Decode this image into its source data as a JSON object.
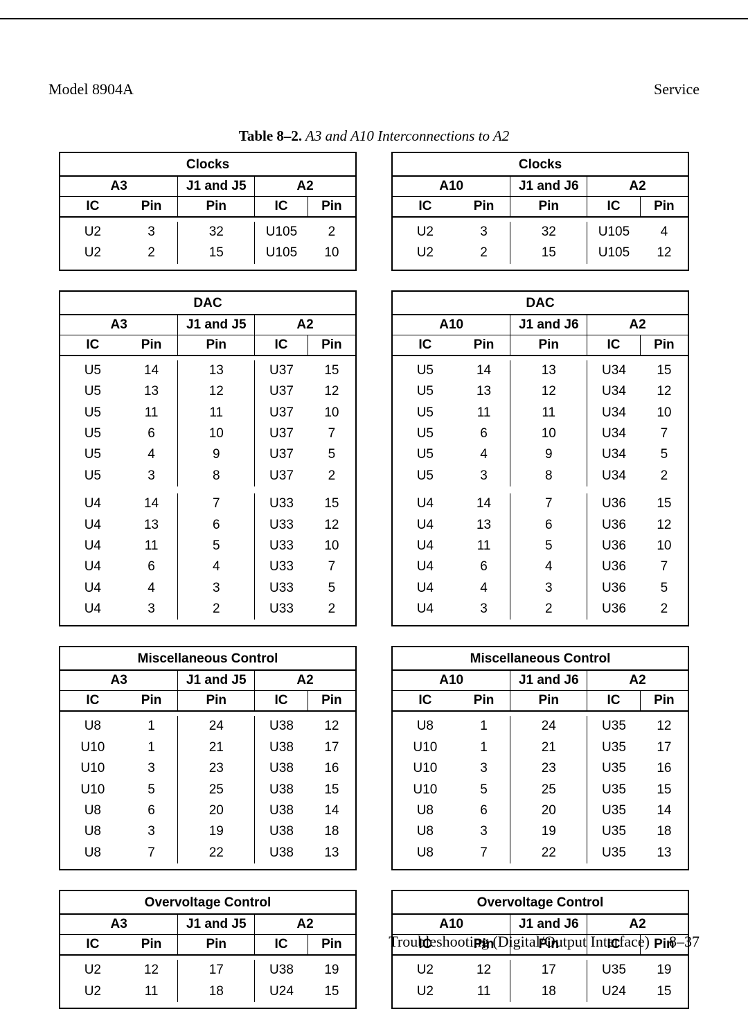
{
  "header": {
    "left": "Model 8904A",
    "right": "Service"
  },
  "caption": {
    "bold": "Table 8–2.",
    "italic": " A3 and A10 Interconnections to A2"
  },
  "footer": {
    "text": "Troubleshooting (Digital/Output Interface)",
    "page": "8–37"
  },
  "col_headers": {
    "ic": "IC",
    "pin": "Pin"
  },
  "middle_sub": "Pin",
  "groups": {
    "left1": "A3",
    "left_mid": "J1 and J5",
    "left3": "A2",
    "right1": "A10",
    "right_mid": "J1 and J6",
    "right3": "A2"
  },
  "tables": {
    "clocks_left": {
      "title": "Clocks",
      "rows": [
        [
          "U2",
          "3",
          "32",
          "U105",
          "2"
        ],
        [
          "U2",
          "2",
          "15",
          "U105",
          "10"
        ]
      ]
    },
    "clocks_right": {
      "title": "Clocks",
      "rows": [
        [
          "U2",
          "3",
          "32",
          "U105",
          "4"
        ],
        [
          "U2",
          "2",
          "15",
          "U105",
          "12"
        ]
      ]
    },
    "dac_left": {
      "title": "DAC",
      "rows1": [
        [
          "U5",
          "14",
          "13",
          "U37",
          "15"
        ],
        [
          "U5",
          "13",
          "12",
          "U37",
          "12"
        ],
        [
          "U5",
          "11",
          "11",
          "U37",
          "10"
        ],
        [
          "U5",
          "6",
          "10",
          "U37",
          "7"
        ],
        [
          "U5",
          "4",
          "9",
          "U37",
          "5"
        ],
        [
          "U5",
          "3",
          "8",
          "U37",
          "2"
        ]
      ],
      "rows2": [
        [
          "U4",
          "14",
          "7",
          "U33",
          "15"
        ],
        [
          "U4",
          "13",
          "6",
          "U33",
          "12"
        ],
        [
          "U4",
          "11",
          "5",
          "U33",
          "10"
        ],
        [
          "U4",
          "6",
          "4",
          "U33",
          "7"
        ],
        [
          "U4",
          "4",
          "3",
          "U33",
          "5"
        ],
        [
          "U4",
          "3",
          "2",
          "U33",
          "2"
        ]
      ]
    },
    "dac_right": {
      "title": "DAC",
      "rows1": [
        [
          "U5",
          "14",
          "13",
          "U34",
          "15"
        ],
        [
          "U5",
          "13",
          "12",
          "U34",
          "12"
        ],
        [
          "U5",
          "11",
          "11",
          "U34",
          "10"
        ],
        [
          "U5",
          "6",
          "10",
          "U34",
          "7"
        ],
        [
          "U5",
          "4",
          "9",
          "U34",
          "5"
        ],
        [
          "U5",
          "3",
          "8",
          "U34",
          "2"
        ]
      ],
      "rows2": [
        [
          "U4",
          "14",
          "7",
          "U36",
          "15"
        ],
        [
          "U4",
          "13",
          "6",
          "U36",
          "12"
        ],
        [
          "U4",
          "11",
          "5",
          "U36",
          "10"
        ],
        [
          "U4",
          "6",
          "4",
          "U36",
          "7"
        ],
        [
          "U4",
          "4",
          "3",
          "U36",
          "5"
        ],
        [
          "U4",
          "3",
          "2",
          "U36",
          "2"
        ]
      ]
    },
    "misc_left": {
      "title": "Miscellaneous Control",
      "rows": [
        [
          "U8",
          "1",
          "24",
          "U38",
          "12"
        ],
        [
          "U10",
          "1",
          "21",
          "U38",
          "17"
        ],
        [
          "U10",
          "3",
          "23",
          "U38",
          "16"
        ],
        [
          "U10",
          "5",
          "25",
          "U38",
          "15"
        ],
        [
          "U8",
          "6",
          "20",
          "U38",
          "14"
        ],
        [
          "U8",
          "3",
          "19",
          "U38",
          "18"
        ],
        [
          "U8",
          "7",
          "22",
          "U38",
          "13"
        ]
      ]
    },
    "misc_right": {
      "title": "Miscellaneous Control",
      "rows": [
        [
          "U8",
          "1",
          "24",
          "U35",
          "12"
        ],
        [
          "U10",
          "1",
          "21",
          "U35",
          "17"
        ],
        [
          "U10",
          "3",
          "23",
          "U35",
          "16"
        ],
        [
          "U10",
          "5",
          "25",
          "U35",
          "15"
        ],
        [
          "U8",
          "6",
          "20",
          "U35",
          "14"
        ],
        [
          "U8",
          "3",
          "19",
          "U35",
          "18"
        ],
        [
          "U8",
          "7",
          "22",
          "U35",
          "13"
        ]
      ]
    },
    "ov_left": {
      "title": "Overvoltage Control",
      "rows": [
        [
          "U2",
          "12",
          "17",
          "U38",
          "19"
        ],
        [
          "U2",
          "11",
          "18",
          "U24",
          "15"
        ]
      ]
    },
    "ov_right": {
      "title": "Overvoltage Control",
      "rows": [
        [
          "U2",
          "12",
          "17",
          "U35",
          "19"
        ],
        [
          "U2",
          "11",
          "18",
          "U24",
          "15"
        ]
      ]
    }
  }
}
